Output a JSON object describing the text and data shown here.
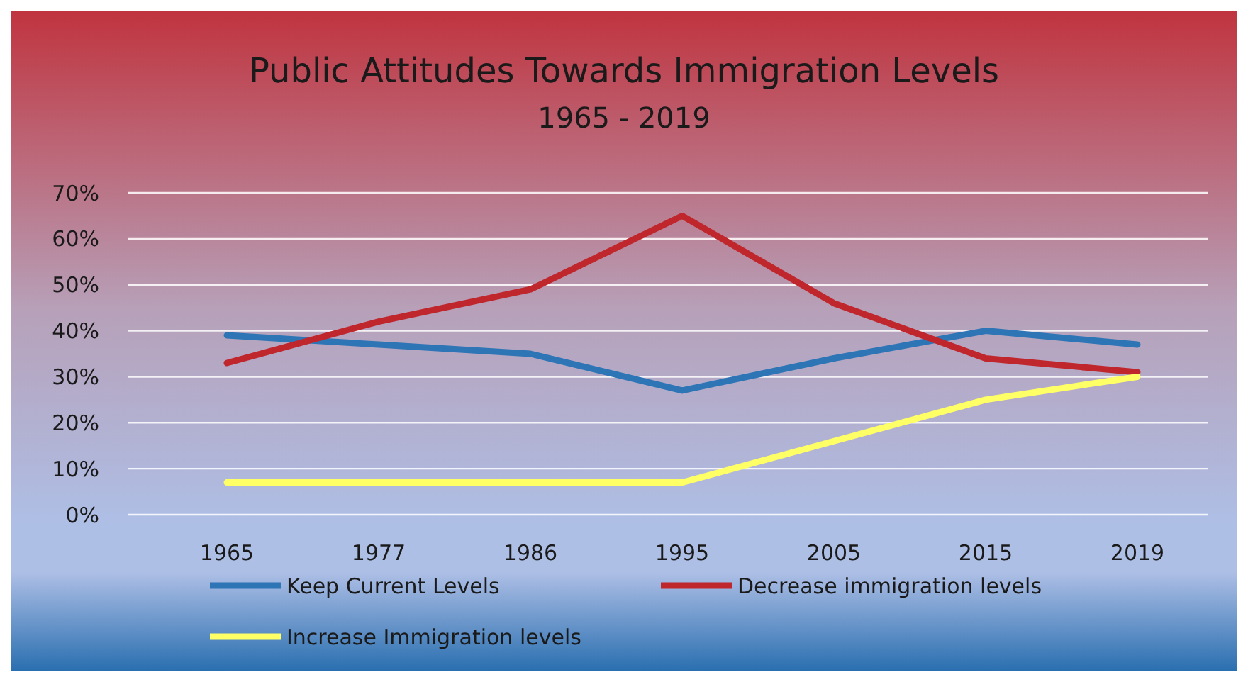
{
  "chart_data": {
    "type": "line",
    "title": "Public Attitudes Towards Immigration Levels",
    "subtitle": "1965 - 2019",
    "categories": [
      "1965",
      "1977",
      "1986",
      "1995",
      "2005",
      "2015",
      "2019"
    ],
    "series": [
      {
        "name": "Keep Current Levels",
        "color": "#2e75b6",
        "values": [
          39,
          37,
          35,
          27,
          34,
          40,
          37
        ]
      },
      {
        "name": "Decrease immigration levels",
        "color": "#c0272d",
        "values": [
          33,
          42,
          49,
          65,
          46,
          34,
          31
        ]
      },
      {
        "name": "Increase Immigration levels",
        "color": "#ffff66",
        "values": [
          7,
          7,
          7,
          7,
          16,
          25,
          30
        ]
      }
    ],
    "ylim": [
      0,
      70
    ],
    "yticks": [
      {
        "value": 0,
        "label": "0%"
      },
      {
        "value": 10,
        "label": "10%"
      },
      {
        "value": 20,
        "label": "20%"
      },
      {
        "value": 30,
        "label": "30%"
      },
      {
        "value": 40,
        "label": "40%"
      },
      {
        "value": 50,
        "label": "50%"
      },
      {
        "value": 60,
        "label": "60%"
      },
      {
        "value": 70,
        "label": "70%"
      }
    ],
    "grid": "y",
    "legend": "bottom",
    "line_style": "solid",
    "marker": "none"
  }
}
